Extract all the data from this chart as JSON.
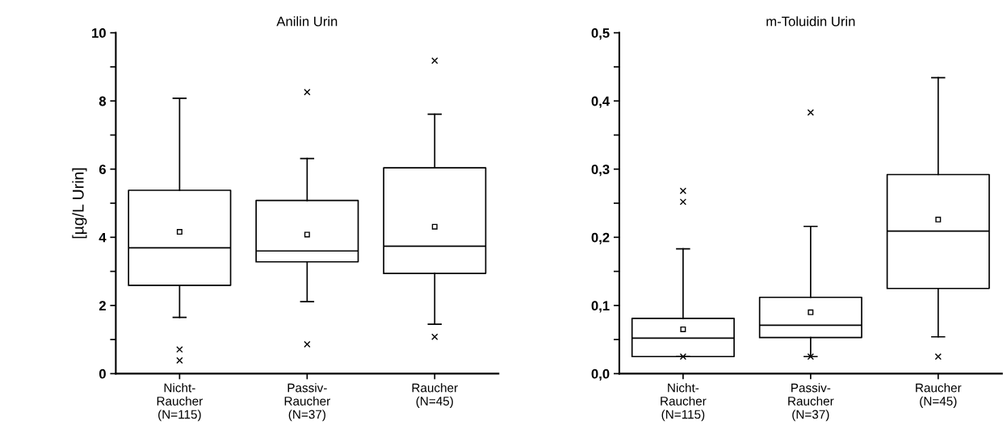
{
  "chart_data": [
    {
      "type": "box",
      "title": "Anilin Urin",
      "ylabel": "[µg/L Urin]",
      "categories": [
        "Nicht-\nRaucher\n(N=115)",
        "Passiv-\nRaucher\n(N=37)",
        "Raucher\n(N=45)"
      ],
      "ylim": [
        0,
        10
      ],
      "yticks": [
        0,
        {
          "value": 1,
          "label": null
        },
        2,
        {
          "value": 3,
          "label": null
        },
        4,
        {
          "value": 5,
          "label": null
        },
        6,
        {
          "value": 7,
          "label": null
        },
        8,
        {
          "value": 9,
          "label": null
        },
        10
      ],
      "boxes": [
        {
          "low": 1.65,
          "q1": 2.59,
          "median": 3.69,
          "q3": 5.38,
          "high": 8.08,
          "mean": 4.16,
          "outliers": [
            0.71,
            0.39
          ]
        },
        {
          "low": 2.11,
          "q1": 3.28,
          "median": 3.6,
          "q3": 5.08,
          "high": 6.31,
          "mean": 4.08,
          "outliers": [
            8.26,
            0.86
          ]
        },
        {
          "low": 1.45,
          "q1": 2.94,
          "median": 3.74,
          "q3": 6.04,
          "high": 7.61,
          "mean": 4.31,
          "outliers": [
            9.18,
            1.08
          ]
        }
      ],
      "grid": false,
      "legend": false
    },
    {
      "type": "box",
      "title": "m-Toluidin Urin",
      "categories": [
        "Nicht-\nRaucher\n(N=115)",
        "Passiv-\nRaucher\n(N=37)",
        "Raucher\n(N=45)"
      ],
      "ylim": [
        0,
        0.5
      ],
      "yticks": [
        {
          "value": 0,
          "label": "0,0"
        },
        {
          "value": 0.05,
          "label": null
        },
        {
          "value": 0.1,
          "label": "0,1"
        },
        {
          "value": 0.15,
          "label": null
        },
        {
          "value": 0.2,
          "label": "0,2"
        },
        {
          "value": 0.25,
          "label": null
        },
        {
          "value": 0.3,
          "label": "0,3"
        },
        {
          "value": 0.35,
          "label": null
        },
        {
          "value": 0.4,
          "label": "0,4"
        },
        {
          "value": 0.45,
          "label": null
        },
        {
          "value": 0.5,
          "label": "0,5"
        }
      ],
      "boxes": [
        {
          "low": 0.025,
          "q1": 0.025,
          "median": 0.052,
          "q3": 0.081,
          "high": 0.183,
          "mean": 0.065,
          "outliers": [
            0.252,
            0.268,
            0.025
          ]
        },
        {
          "low": 0.025,
          "q1": 0.053,
          "median": 0.071,
          "q3": 0.112,
          "high": 0.216,
          "mean": 0.09,
          "outliers": [
            0.383,
            0.025
          ]
        },
        {
          "low": 0.054,
          "q1": 0.125,
          "median": 0.209,
          "q3": 0.292,
          "high": 0.434,
          "mean": 0.226,
          "outliers": [
            0.025
          ]
        }
      ],
      "grid": false,
      "legend": false
    }
  ]
}
